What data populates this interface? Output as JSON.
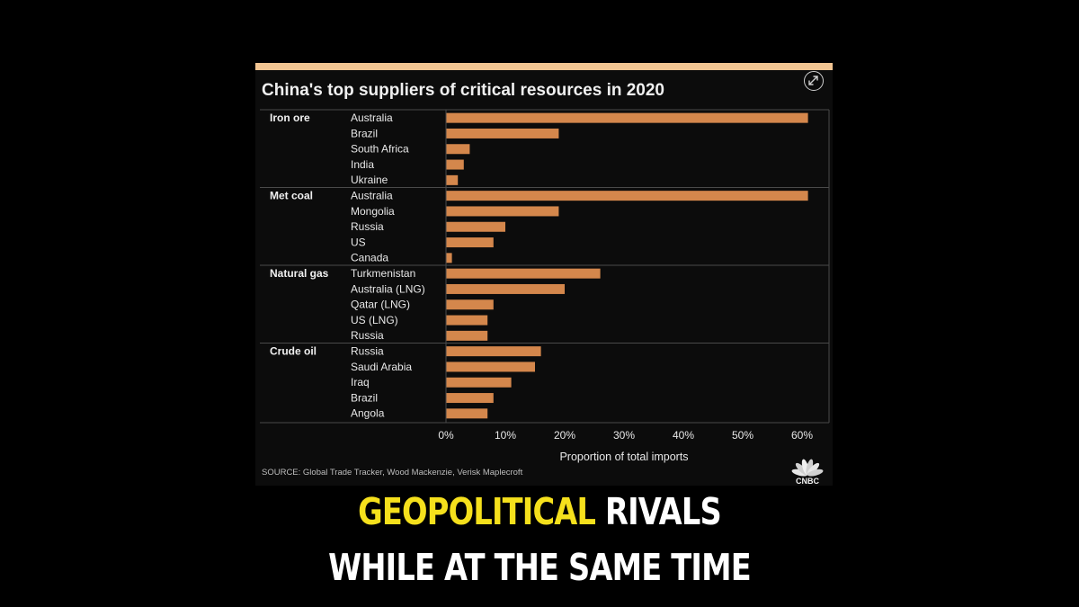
{
  "chart_data": {
    "type": "bar",
    "orientation": "horizontal",
    "title": "China's top suppliers of critical resources in 2020",
    "xlabel": "Proportion of total imports",
    "ylabel": "",
    "xlim": [
      0,
      65
    ],
    "x_ticks": [
      "0%",
      "10%",
      "20%",
      "30%",
      "40%",
      "50%",
      "60%"
    ],
    "x_tick_values": [
      0,
      10,
      20,
      30,
      40,
      50,
      60
    ],
    "grid": false,
    "bar_color": "#d4874c",
    "groups": [
      {
        "name": "Iron ore",
        "categories": [
          "Australia",
          "Brazil",
          "South Africa",
          "India",
          "Ukraine"
        ],
        "values": [
          61,
          19,
          4,
          3,
          2
        ]
      },
      {
        "name": "Met coal",
        "categories": [
          "Australia",
          "Mongolia",
          "Russia",
          "US",
          "Canada"
        ],
        "values": [
          61,
          19,
          10,
          8,
          1
        ]
      },
      {
        "name": "Natural gas",
        "categories": [
          "Turkmenistan",
          "Australia (LNG)",
          "Qatar (LNG)",
          "US (LNG)",
          "Russia"
        ],
        "values": [
          26,
          20,
          8,
          7,
          7
        ]
      },
      {
        "name": "Crude oil",
        "categories": [
          "Russia",
          "Saudi Arabia",
          "Iraq",
          "Brazil",
          "Angola"
        ],
        "values": [
          16,
          15,
          11,
          8,
          7
        ]
      }
    ]
  },
  "source": "SOURCE: Global Trade Tracker, Wood Mackenzie, Verisk Maplecroft",
  "logo_text": "CNBC",
  "expand_icon": "expand-arrows-icon",
  "caption": {
    "line1_highlight": "GEOPOLITICAL",
    "line1_rest": "RIVALS",
    "line2": "WHILE AT THE SAME TIME",
    "highlight_color": "#f5e01c"
  },
  "colors": {
    "background": "#000000",
    "accent_bar": "#f2c592",
    "bar": "#d4874c",
    "caption_highlight": "#f5e01c"
  }
}
